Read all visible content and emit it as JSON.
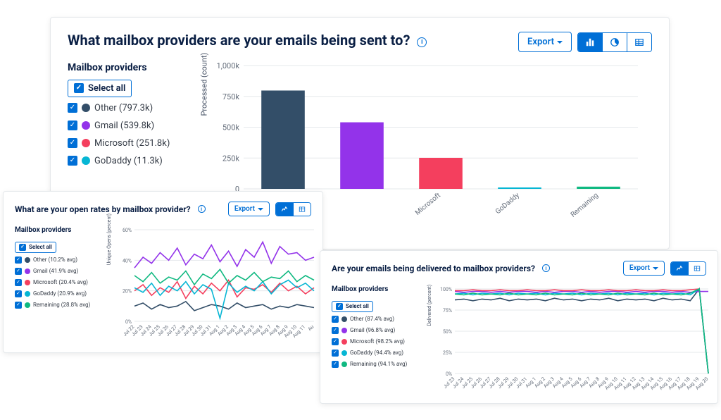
{
  "colors": {
    "primary": "#006fd6",
    "text": "#0a1f44",
    "grid": "#e5e8eb",
    "series": {
      "other": "#334e68",
      "gmail": "#9333ea",
      "microsoft": "#f43f5e",
      "godaddy": "#06b6d4",
      "remaining": "#10b981"
    }
  },
  "panel1": {
    "title": "What mailbox providers are your emails being sent to?",
    "export_label": "Export",
    "view_icons": [
      "bar",
      "pie",
      "table"
    ],
    "active_view": 0,
    "legend_title": "Mailbox providers",
    "select_all": "Select all",
    "items": [
      {
        "key": "other",
        "label": "Other (797.3k)"
      },
      {
        "key": "gmail",
        "label": "Gmail (539.8k)"
      },
      {
        "key": "microsoft",
        "label": "Microsoft (251.8k)"
      },
      {
        "key": "godaddy",
        "label": "GoDaddy (11.3k)"
      }
    ],
    "chart": {
      "type": "bar",
      "ylabel": "Processed (count)",
      "ylim": [
        0,
        1000
      ],
      "yticks": [
        {
          "v": 0,
          "l": "0"
        },
        {
          "v": 250,
          "l": "250k"
        },
        {
          "v": 500,
          "l": "500k"
        },
        {
          "v": 750,
          "l": "750k"
        },
        {
          "v": 1000,
          "l": "1,000k"
        }
      ],
      "bars": [
        {
          "key": "other",
          "value": 797.3
        },
        {
          "key": "gmail",
          "value": 539.8
        },
        {
          "key": "microsoft",
          "value": 251.8
        },
        {
          "key": "godaddy",
          "value": 11.3
        },
        {
          "key": "remaining",
          "value": 18
        }
      ],
      "xlabels": [
        "",
        "",
        "Microsoft",
        "GoDaddy",
        "Remaining"
      ]
    }
  },
  "panel2": {
    "title": "What are your open rates by mailbox provider?",
    "export_label": "Export",
    "view_icons": [
      "line",
      "table"
    ],
    "active_view": 0,
    "legend_title": "Mailbox providers",
    "select_all": "Select all",
    "items": [
      {
        "key": "other",
        "label": "Other (10.2% avg)"
      },
      {
        "key": "gmail",
        "label": "Gmail (41.9% avg)"
      },
      {
        "key": "microsoft",
        "label": "Microsoft (20.4% avg)"
      },
      {
        "key": "godaddy",
        "label": "GoDaddy (20.9% avg)"
      },
      {
        "key": "remaining",
        "label": "Remaining (28.8% avg)"
      }
    ],
    "chart": {
      "type": "line",
      "ylabel": "Unique Opens (percent)",
      "ylim": [
        0,
        60
      ],
      "yticks": [
        {
          "v": 0,
          "l": "0%"
        },
        {
          "v": 20,
          "l": "20%"
        },
        {
          "v": 40,
          "l": "40%"
        },
        {
          "v": 60,
          "l": "60%"
        }
      ],
      "xlabels": [
        "Jul 22",
        "Jul 23",
        "Jul 24",
        "Jul 25",
        "Jul 26",
        "Jul 27",
        "Jul 28",
        "Jul 29",
        "Jul 30",
        "Jul 31",
        "Aug 1",
        "Aug 2",
        "Aug 3",
        "Aug 4",
        "Aug 5",
        "Aug 6",
        "Aug 7",
        "Aug 8",
        "Aug 9",
        "Aug 10",
        "Aug 11",
        "Au"
      ],
      "series": {
        "other": [
          10,
          12,
          8,
          11,
          9,
          10,
          13,
          7,
          9,
          11,
          10,
          8,
          12,
          9,
          10,
          11,
          8,
          10,
          9,
          11,
          10,
          9
        ],
        "gmail": [
          35,
          42,
          38,
          45,
          40,
          48,
          37,
          44,
          41,
          50,
          39,
          46,
          36,
          47,
          42,
          52,
          38,
          49,
          44,
          45,
          40,
          42
        ],
        "microsoft": [
          20,
          24,
          17,
          22,
          19,
          26,
          15,
          23,
          18,
          25,
          20,
          27,
          16,
          22,
          21,
          24,
          19,
          25,
          20,
          23,
          18,
          22
        ],
        "godaddy": [
          22,
          19,
          25,
          17,
          23,
          20,
          26,
          18,
          24,
          21,
          2,
          25,
          19,
          23,
          20,
          26,
          18,
          24,
          27,
          22,
          25,
          20
        ],
        "remaining": [
          30,
          26,
          32,
          25,
          29,
          27,
          33,
          24,
          31,
          28,
          34,
          25,
          30,
          27,
          32,
          26,
          29,
          28,
          33,
          26,
          30,
          27
        ]
      }
    }
  },
  "panel3": {
    "title": "Are your emails being delivered to mailbox providers?",
    "export_label": "Export",
    "view_icons": [
      "line",
      "table"
    ],
    "active_view": 0,
    "legend_title": "Mailbox providers",
    "select_all": "Select all",
    "items": [
      {
        "key": "other",
        "label": "Other (87.4% avg)"
      },
      {
        "key": "gmail",
        "label": "Gmail (96.8% avg)"
      },
      {
        "key": "microsoft",
        "label": "Microsoft (98.2% avg)"
      },
      {
        "key": "godaddy",
        "label": "GoDaddy (94.4% avg)"
      },
      {
        "key": "remaining",
        "label": "Remaining (94.1% avg)"
      }
    ],
    "chart": {
      "type": "line",
      "ylabel": "Delivered (percent)",
      "ylim": [
        0,
        100
      ],
      "yticks": [
        {
          "v": 0,
          "l": "0%"
        },
        {
          "v": 25,
          "l": "25%"
        },
        {
          "v": 50,
          "l": "50%"
        },
        {
          "v": 75,
          "l": "75%"
        },
        {
          "v": 100,
          "l": "100%"
        }
      ],
      "xlabels": [
        "Jul 23",
        "Jul 24",
        "Jul 25",
        "Jul 26",
        "Jul 27",
        "Jul 28",
        "Jul 29",
        "Jul 30",
        "Jul 31",
        "Aug 1",
        "Aug 2",
        "Aug 3",
        "Aug 4",
        "Aug 5",
        "Aug 6",
        "Aug 7",
        "Aug 8",
        "Aug 9",
        "Aug 10",
        "Aug 11",
        "Aug 12",
        "Aug 13",
        "Aug 14",
        "Aug 15",
        "Aug 16",
        "Aug 17",
        "Aug 18",
        "Aug 19",
        "Aug 20"
      ],
      "series": {
        "other": [
          87,
          88,
          86,
          88,
          87,
          89,
          86,
          88,
          87,
          88,
          86,
          89,
          87,
          88,
          86,
          88,
          87,
          89,
          86,
          88,
          87,
          88,
          86,
          89,
          87,
          88,
          86,
          100,
          0
        ],
        "gmail": [
          97,
          96,
          97,
          97,
          96,
          97,
          96,
          97,
          97,
          96,
          97,
          96,
          97,
          97,
          96,
          97,
          96,
          97,
          97,
          96,
          97,
          96,
          97,
          97,
          96,
          97,
          96,
          97,
          97
        ],
        "microsoft": [
          98,
          98,
          99,
          98,
          98,
          99,
          98,
          98,
          99,
          98,
          98,
          99,
          98,
          98,
          99,
          98,
          98,
          99,
          98,
          98,
          99,
          98,
          98,
          99,
          98,
          98,
          99,
          100,
          0
        ],
        "godaddy": [
          94,
          95,
          93,
          95,
          94,
          95,
          93,
          95,
          94,
          95,
          93,
          95,
          94,
          95,
          93,
          95,
          94,
          95,
          93,
          95,
          94,
          95,
          93,
          95,
          94,
          95,
          93,
          100,
          0
        ],
        "remaining": [
          94,
          93,
          95,
          93,
          94,
          93,
          95,
          93,
          94,
          93,
          95,
          93,
          94,
          93,
          95,
          93,
          94,
          93,
          95,
          93,
          94,
          93,
          95,
          93,
          94,
          93,
          95,
          100,
          0
        ]
      }
    }
  }
}
